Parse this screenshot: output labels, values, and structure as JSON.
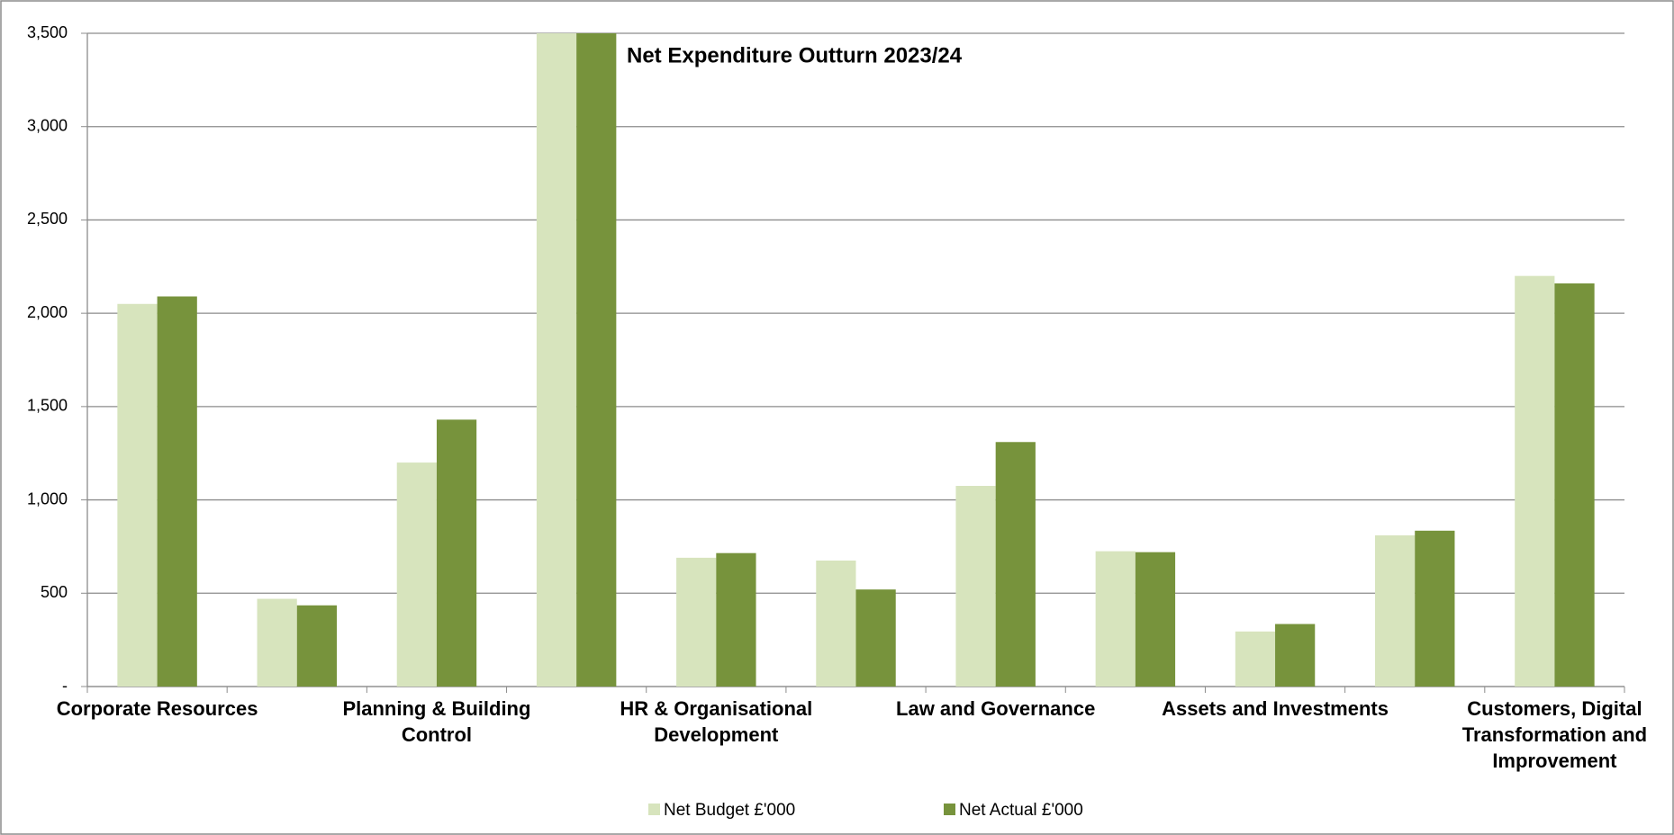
{
  "chart_data": {
    "type": "bar",
    "title": "Net Expenditure Outturn 2023/24",
    "categories": [
      "Corporate Resources",
      null,
      "Planning & Building Control",
      null,
      "HR & Organisational Development",
      null,
      "Law and Governance",
      null,
      "Assets and Investments",
      null,
      "Customers, Digital Transformation and Improvement"
    ],
    "series": [
      {
        "name": "Net Budget £'000",
        "color": "#d7e4bd",
        "values": [
          2050,
          470,
          1200,
          3500,
          690,
          675,
          1075,
          725,
          295,
          810,
          2200
        ]
      },
      {
        "name": "Net Actual £'000",
        "color": "#77933c",
        "values": [
          2090,
          435,
          1430,
          3500,
          715,
          520,
          1310,
          720,
          335,
          835,
          2160
        ]
      }
    ],
    "ylim": [
      0,
      3500
    ],
    "yticks": [
      {
        "value": 0,
        "label": "-"
      },
      500,
      {
        "value": 1000,
        "label": "1,000"
      },
      {
        "value": 1500,
        "label": "1,500"
      },
      {
        "value": 2000,
        "label": "2,000"
      },
      {
        "value": 2500,
        "label": "2,500"
      },
      {
        "value": 3000,
        "label": "3,000"
      },
      {
        "value": 3500,
        "label": "3,500"
      }
    ],
    "grid": true,
    "legend": "bottom"
  }
}
